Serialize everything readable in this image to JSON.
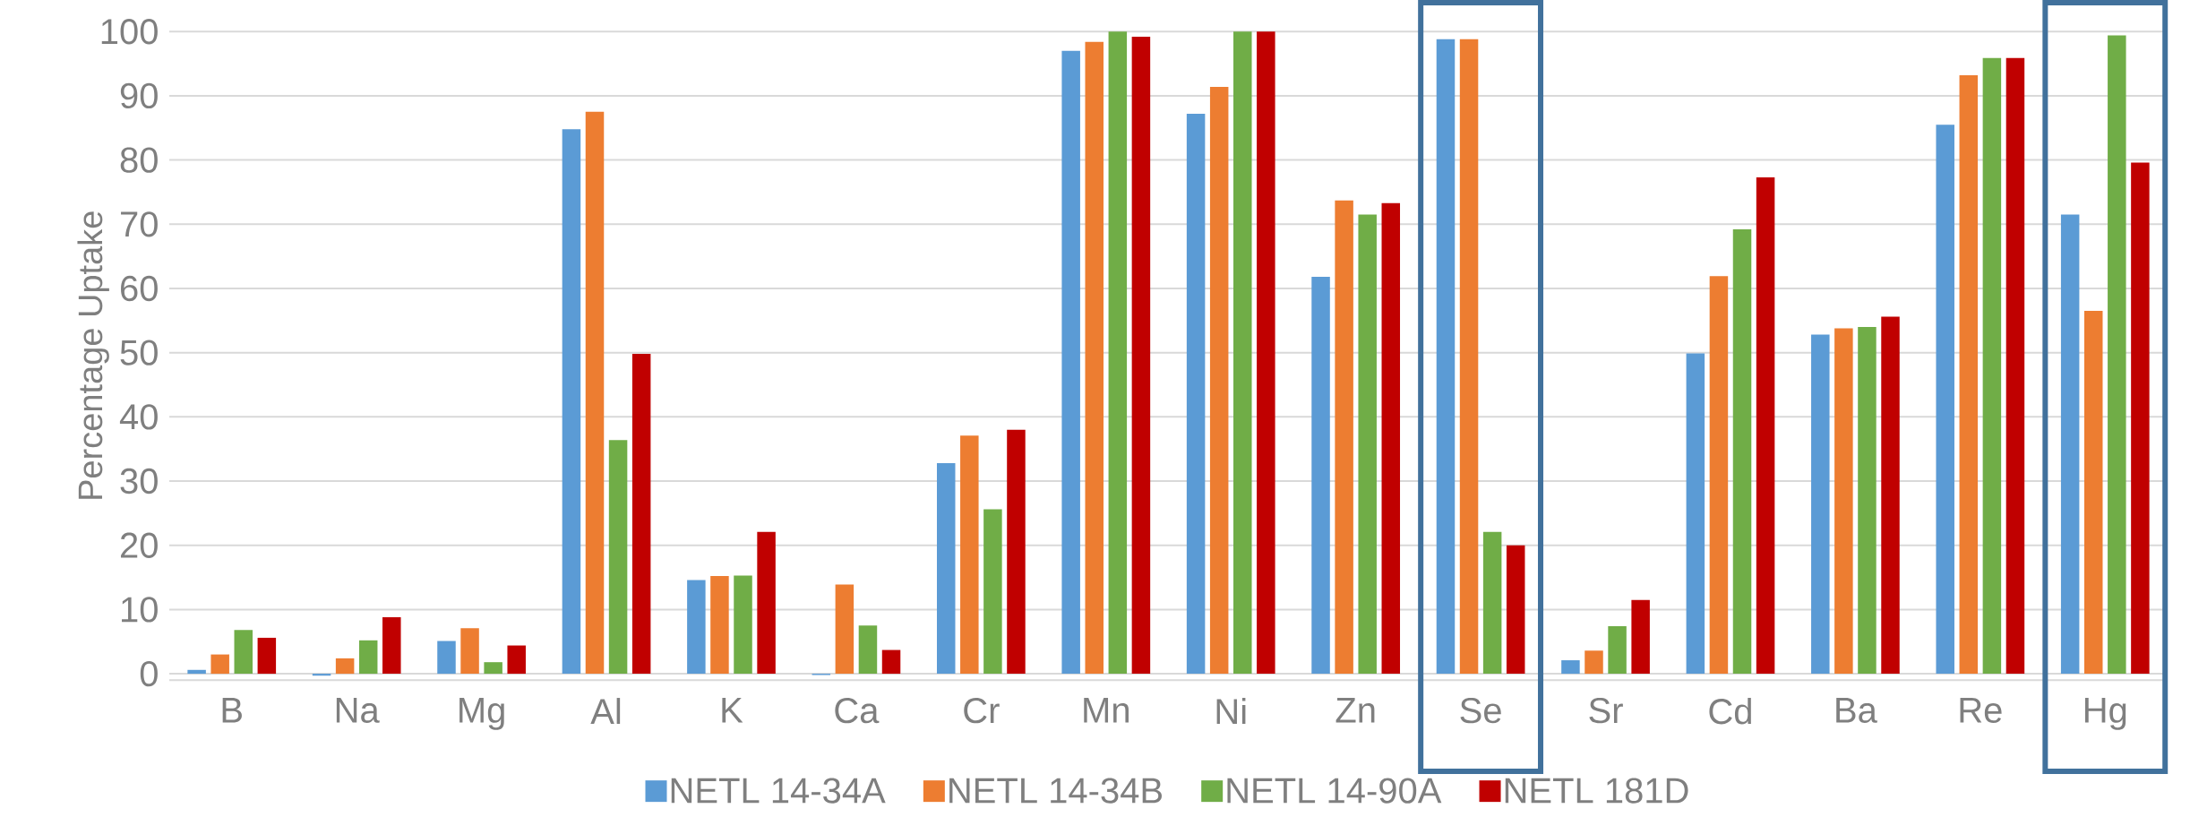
{
  "chart_data": {
    "type": "bar",
    "ylabel": "Percentage Uptake",
    "categories": [
      "B",
      "Na",
      "Mg",
      "Al",
      "K",
      "Ca",
      "Cr",
      "Mn",
      "Ni",
      "Zn",
      "Se",
      "Sr",
      "Cd",
      "Ba",
      "Re",
      "Hg"
    ],
    "series": [
      {
        "name": "NETL 14-34A",
        "color": "#5b9bd5",
        "values": [
          0.6,
          -0.3,
          5.1,
          84.8,
          14.6,
          -0.2,
          32.8,
          97.0,
          87.2,
          61.8,
          98.8,
          2.1,
          49.9,
          52.8,
          85.5,
          71.5
        ]
      },
      {
        "name": "NETL 14-34B",
        "color": "#ed7d31",
        "values": [
          3.0,
          2.4,
          7.1,
          87.5,
          15.2,
          13.9,
          37.1,
          98.4,
          91.4,
          73.7,
          98.8,
          3.6,
          61.9,
          53.8,
          93.2,
          56.5
        ]
      },
      {
        "name": "NETL 14-90A",
        "color": "#70ad47",
        "values": [
          6.8,
          5.2,
          1.8,
          36.4,
          15.3,
          7.5,
          25.6,
          100,
          100,
          71.5,
          22.1,
          7.4,
          69.2,
          54.0,
          95.9,
          99.4
        ]
      },
      {
        "name": "NETL 181D",
        "color": "#c00000",
        "values": [
          5.6,
          8.8,
          4.4,
          49.8,
          22.1,
          3.7,
          38.0,
          99.2,
          100,
          73.3,
          20.0,
          11.5,
          77.3,
          55.6,
          95.9,
          79.6
        ]
      }
    ],
    "ylim": [
      -1,
      100
    ],
    "yticks": [
      0,
      10,
      20,
      30,
      40,
      50,
      60,
      70,
      80,
      90,
      100
    ],
    "grid": "y",
    "legend": "bottom"
  }
}
